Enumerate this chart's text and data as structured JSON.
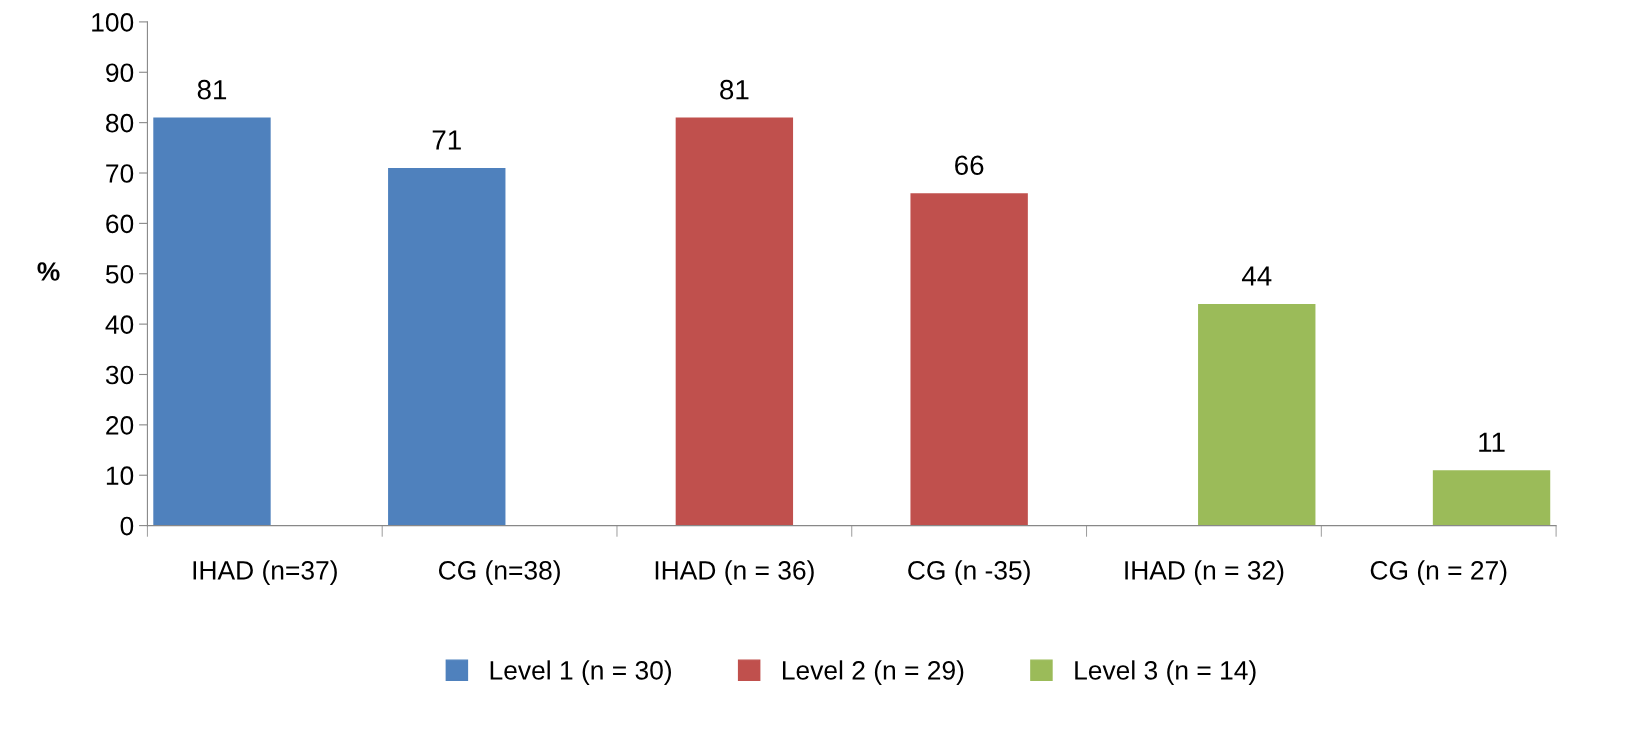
{
  "chart_data": {
    "type": "bar",
    "ylabel": "%",
    "categories": [
      "IHAD (n=37)",
      "CG (n=38)",
      "IHAD (n = 36)",
      "CG (n -35)",
      "IHAD (n = 32)",
      "CG (n = 27)"
    ],
    "series": [
      {
        "name": "Level 1 (n = 30)",
        "color": "#4f81bd",
        "values": [
          81,
          71,
          null,
          null,
          null,
          null
        ]
      },
      {
        "name": "Level 2 (n = 29)",
        "color": "#c0504d",
        "values": [
          null,
          null,
          81,
          66,
          null,
          null
        ]
      },
      {
        "name": "Level 3 (n = 14)",
        "color": "#9bbb59",
        "values": [
          null,
          null,
          null,
          null,
          44,
          11
        ]
      }
    ],
    "ylim": [
      0,
      100
    ],
    "yticks": [
      0,
      10,
      20,
      30,
      40,
      50,
      60,
      70,
      80,
      90,
      100
    ],
    "data_labels": true,
    "grid": false,
    "legend": "bottom"
  }
}
